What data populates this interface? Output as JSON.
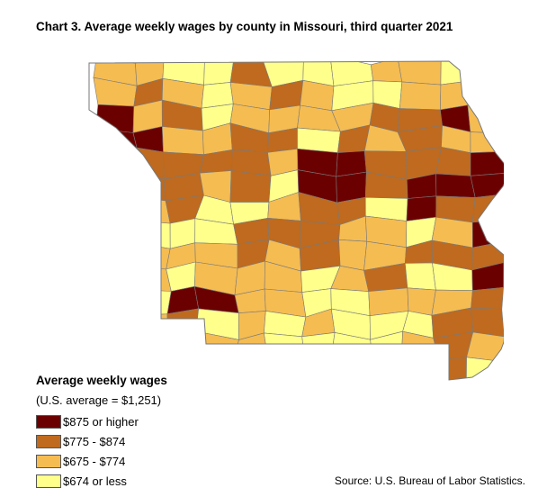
{
  "title": "Chart 3. Average weekly wages by county in Missouri, third quarter 2021",
  "legend": {
    "heading": "Average weekly wages",
    "note": "(U.S. average = $1,251)",
    "items": [
      {
        "label": "$875 or higher",
        "color": "#6b0000"
      },
      {
        "label": "$775 - $874",
        "color": "#bf6a1e"
      },
      {
        "label": "$675 - $774",
        "color": "#f5bc52"
      },
      {
        "label": "$674 or less",
        "color": "#ffff8c"
      }
    ]
  },
  "source": "Source: U.S. Bureau of Labor Statistics."
}
